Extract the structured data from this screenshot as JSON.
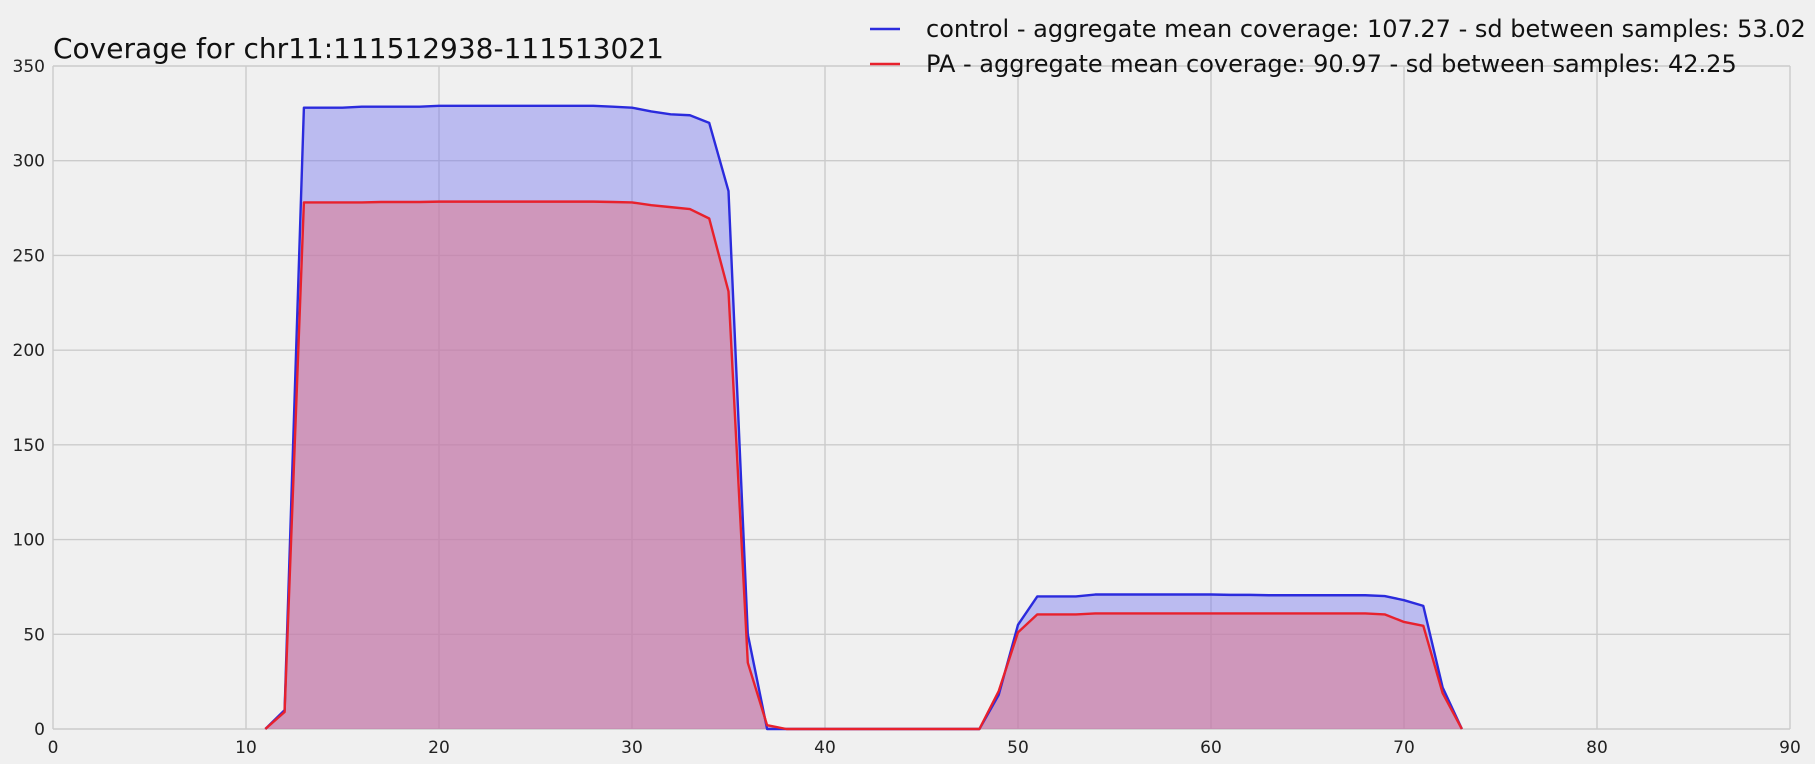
{
  "chart_data": {
    "type": "area",
    "title": "Coverage for chr11:111512938-111513021",
    "xlabel": "",
    "ylabel": "",
    "xlim": [
      0,
      90
    ],
    "ylim": [
      0,
      350
    ],
    "xticks": [
      0,
      10,
      20,
      30,
      40,
      50,
      60,
      70,
      80,
      90
    ],
    "yticks": [
      0,
      50,
      100,
      150,
      200,
      250,
      300,
      350
    ],
    "grid": true,
    "legend_position": "top-right",
    "series": [
      {
        "name": "control - aggregate mean coverage: 107.27 - sd between samples: 53.02",
        "color": "#2b2bdd",
        "fill_color": "#7b7bf0",
        "x": [
          11,
          12,
          13,
          14,
          15,
          16,
          17,
          18,
          19,
          20,
          21,
          22,
          23,
          24,
          25,
          26,
          27,
          28,
          29,
          30,
          31,
          32,
          33,
          34,
          35,
          36,
          37,
          38,
          48,
          49,
          50,
          51,
          52,
          53,
          54,
          55,
          56,
          57,
          58,
          59,
          60,
          61,
          62,
          63,
          64,
          65,
          66,
          67,
          68,
          69,
          70,
          71,
          72,
          73
        ],
        "values": [
          0,
          10,
          328,
          328,
          328,
          328.5,
          328.5,
          328.5,
          328.5,
          329,
          329,
          329,
          329,
          329,
          329,
          329,
          329,
          329,
          328.5,
          328,
          326,
          324.5,
          324,
          320,
          284,
          50,
          0,
          0,
          0,
          18,
          55,
          70,
          70,
          70,
          71,
          71,
          71,
          71,
          71,
          71,
          71,
          70.8,
          70.8,
          70.6,
          70.6,
          70.6,
          70.6,
          70.6,
          70.6,
          70.2,
          68,
          65,
          22,
          0
        ]
      },
      {
        "name": "PA - aggregate mean coverage: 90.97 - sd between samples: 42.25",
        "color": "#e8212c",
        "fill_color": "#e07a90",
        "x": [
          11,
          12,
          13,
          14,
          15,
          16,
          17,
          18,
          19,
          20,
          21,
          22,
          23,
          24,
          25,
          26,
          27,
          28,
          29,
          30,
          31,
          32,
          33,
          34,
          35,
          36,
          37,
          38,
          48,
          49,
          50,
          51,
          52,
          53,
          54,
          55,
          56,
          57,
          58,
          59,
          60,
          61,
          62,
          63,
          64,
          65,
          66,
          67,
          68,
          69,
          70,
          71,
          72,
          73
        ],
        "values": [
          0,
          9,
          278,
          278,
          278,
          278,
          278.2,
          278.2,
          278.2,
          278.4,
          278.4,
          278.4,
          278.4,
          278.4,
          278.4,
          278.4,
          278.4,
          278.4,
          278.2,
          278,
          276.5,
          275.5,
          274.5,
          269.5,
          231,
          35,
          2,
          0,
          0,
          20,
          51,
          60.5,
          60.5,
          60.5,
          61,
          61,
          61,
          61,
          61,
          61,
          61,
          61,
          61,
          61,
          61,
          61,
          61,
          61,
          61,
          60.5,
          56.5,
          54.5,
          19,
          0
        ]
      }
    ]
  }
}
